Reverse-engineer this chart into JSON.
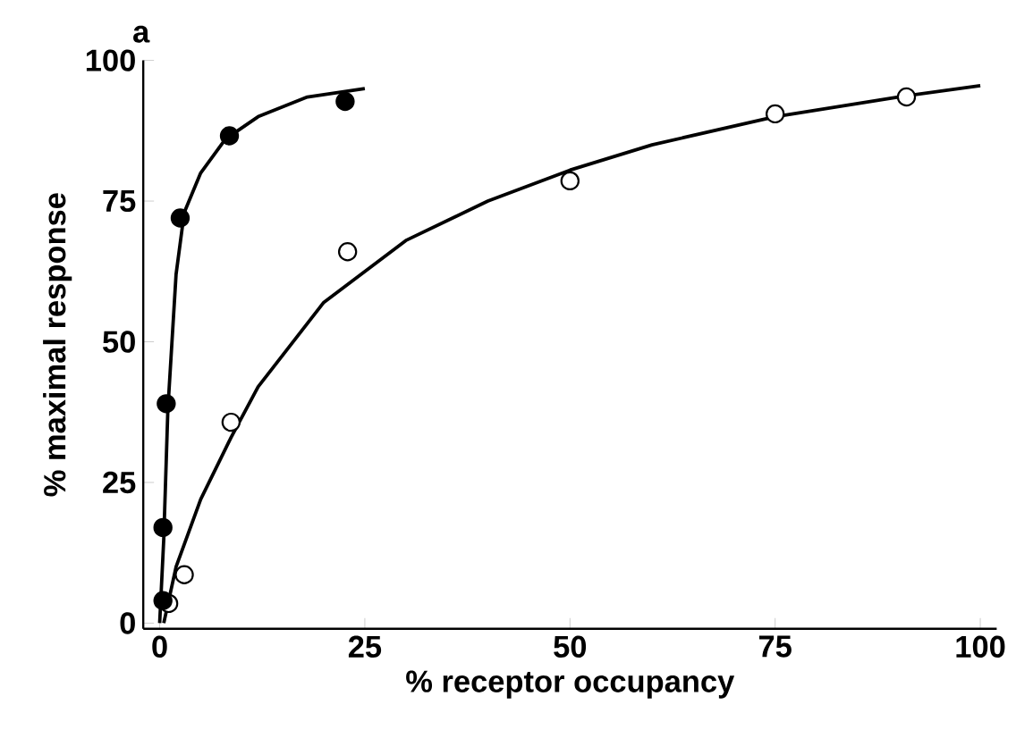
{
  "chart_data": {
    "type": "scatter",
    "title": "a",
    "xlabel": "% receptor occupancy",
    "ylabel": "% maximal response",
    "xlim": [
      -2,
      102
    ],
    "ylim": [
      -1,
      100
    ],
    "xticks": [
      0,
      25,
      50,
      75,
      100
    ],
    "yticks": [
      0,
      25,
      50,
      75,
      100
    ],
    "series": [
      {
        "type": "line",
        "color": "#000000",
        "marker": "none",
        "x": [
          0,
          0.5,
          1,
          2,
          3,
          5,
          8,
          12,
          18,
          25
        ],
        "values": [
          0,
          15,
          38,
          62,
          73,
          80,
          86,
          90,
          93.5,
          95
        ]
      },
      {
        "type": "line",
        "color": "#000000",
        "marker": "none",
        "x": [
          0.5,
          2,
          5,
          8.7,
          12,
          20,
          30,
          40,
          50,
          60,
          75,
          90,
          100
        ],
        "values": [
          0,
          10,
          22,
          33,
          42,
          57,
          68,
          75,
          80.5,
          85,
          90,
          93.5,
          95.5
        ]
      },
      {
        "color": "#ffffff",
        "marker": "circle",
        "x": [
          1.1,
          3,
          8.7,
          22.9,
          50,
          75,
          91
        ],
        "values": [
          3.5,
          8.6,
          35.7,
          66,
          78.6,
          90.5,
          93.5
        ]
      },
      {
        "color": "#000000",
        "marker": "circle",
        "x": [
          0.4,
          0.4,
          0.8,
          2.5,
          8.5,
          22.6
        ],
        "values": [
          4,
          17,
          39,
          72,
          86.6,
          92.7
        ]
      }
    ]
  }
}
